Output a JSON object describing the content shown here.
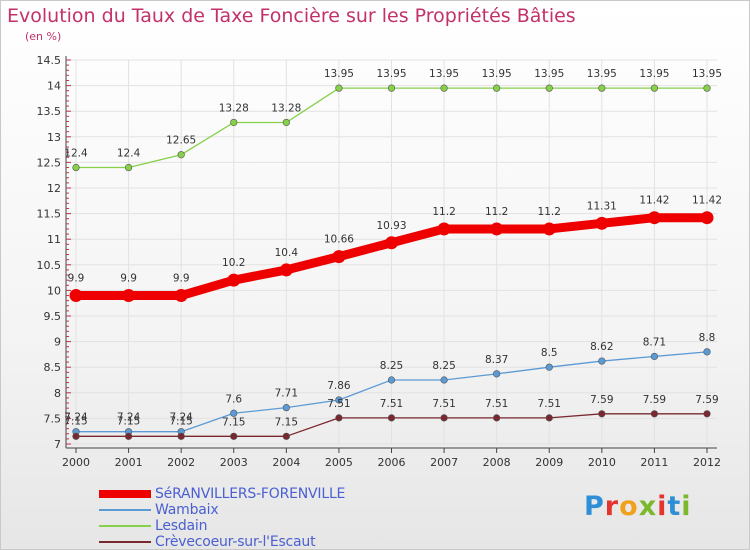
{
  "chart_data": {
    "type": "line",
    "title": "Evolution du Taux de Taxe Foncière sur les Propriétés Bâties",
    "ylabel": "(en %)",
    "xlabel": "",
    "categories": [
      "2000",
      "2001",
      "2002",
      "2003",
      "2004",
      "2005",
      "2006",
      "2007",
      "2008",
      "2009",
      "2010",
      "2011",
      "2012"
    ],
    "ylim": [
      7,
      14.5
    ],
    "yticks": [
      "7",
      "7.5",
      "8",
      "8.5",
      "9",
      "9.5",
      "10",
      "10.5",
      "11",
      "11.5",
      "12",
      "12.5",
      "13",
      "13.5",
      "14",
      "14.5"
    ],
    "grid": true,
    "legend": "bottom-left",
    "series": [
      {
        "name": "SéRANVILLERS-FORENVILLE",
        "color": "#ee0000",
        "emphasis": "thick",
        "values": [
          9.9,
          9.9,
          9.9,
          10.2,
          10.4,
          10.66,
          10.93,
          11.2,
          11.2,
          11.2,
          11.31,
          11.42,
          11.42
        ],
        "labels": [
          "9.9",
          "9.9",
          "9.9",
          "10.2",
          "10.4",
          "10.66",
          "10.93",
          "11.2",
          "11.2",
          "11.2",
          "11.31",
          "11.42",
          "11.42"
        ]
      },
      {
        "name": "Wambaix",
        "color": "#5b9bd5",
        "values": [
          7.24,
          7.24,
          7.24,
          7.6,
          7.71,
          7.86,
          8.25,
          8.25,
          8.37,
          8.5,
          8.62,
          8.71,
          8.8
        ],
        "labels": [
          "7.24",
          "7.24",
          "7.24",
          "7.6",
          "7.71",
          "7.86",
          "8.25",
          "8.25",
          "8.37",
          "8.5",
          "8.62",
          "8.71",
          "8.8"
        ]
      },
      {
        "name": "Lesdain",
        "color": "#86d04a",
        "values": [
          12.4,
          12.4,
          12.65,
          13.28,
          13.28,
          13.95,
          13.95,
          13.95,
          13.95,
          13.95,
          13.95,
          13.95,
          13.95
        ],
        "labels": [
          "12.4",
          "12.4",
          "12.65",
          "13.28",
          "13.28",
          "13.95",
          "13.95",
          "13.95",
          "13.95",
          "13.95",
          "13.95",
          "13.95",
          "13.95"
        ]
      },
      {
        "name": "Crèvecoeur-sur-l'Escaut",
        "color": "#7a2830",
        "values": [
          7.15,
          7.15,
          7.15,
          7.15,
          7.15,
          7.51,
          7.51,
          7.51,
          7.51,
          7.51,
          7.59,
          7.59,
          7.59
        ],
        "labels": [
          "7.15",
          "7.15",
          "7.15",
          "7.15",
          "7.15",
          "7.51",
          "7.51",
          "7.51",
          "7.51",
          "7.51",
          "7.59",
          "7.59",
          "7.59"
        ]
      }
    ]
  },
  "logo": {
    "text": "Proxiti",
    "colors": [
      "#2e8fd6",
      "#e3342f",
      "#f0a21c",
      "#7ab82c",
      "#e3342f",
      "#2e8fd6",
      "#7ab82c"
    ]
  }
}
